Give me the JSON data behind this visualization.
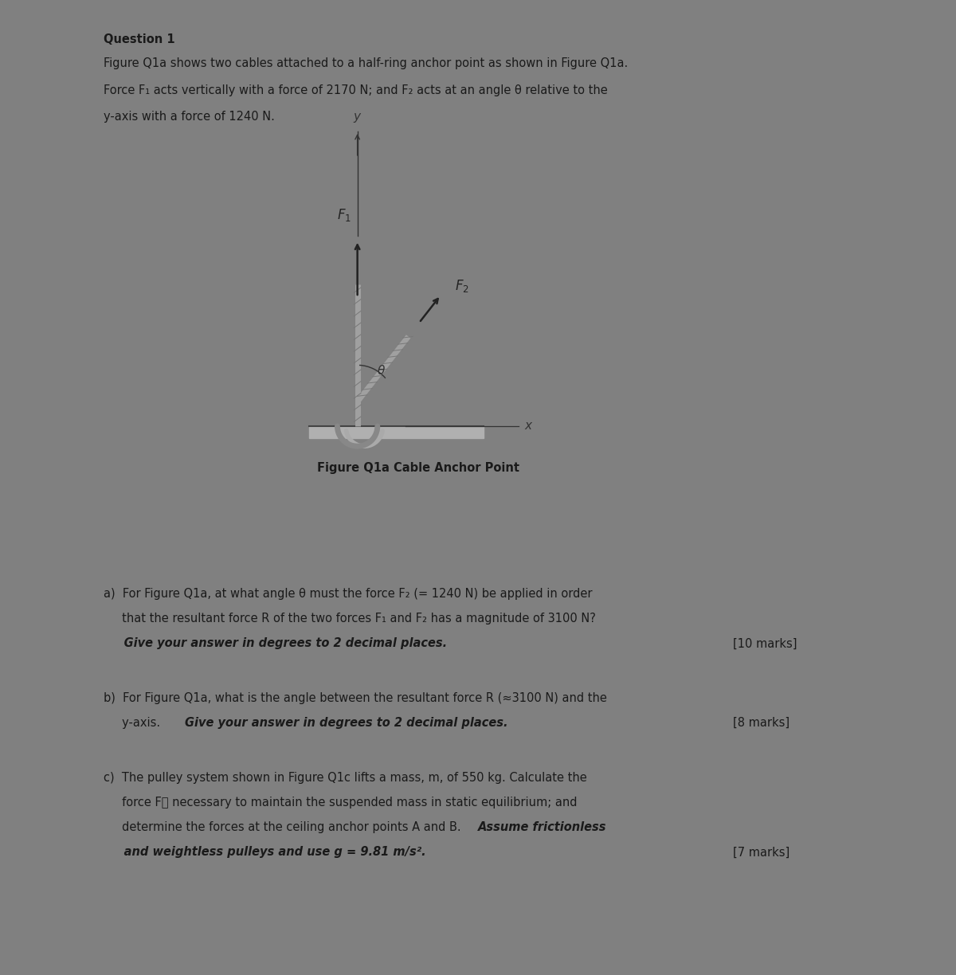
{
  "title": "Question 1",
  "text_color": "#1a1a1a",
  "page_bg": "#808080",
  "white": "#ffffff",
  "intro_line1": "Figure Q1a shows two cables attached to a half-ring anchor point as shown in Figure Q1a.",
  "intro_line2": "Force F₁ acts vertically with a force of 2170 N; and F₂ acts at an angle θ relative to the",
  "intro_line3": "y-axis with a force of 1240 N.",
  "fig_caption": "Figure Q1a Cable Anchor Point",
  "a_line1": "a)  For Figure Q1a, at what angle θ must the force F₂ (= 1240 N) be applied in order",
  "a_line2": "     that the resultant force R of the two forces F₁ and F₂ has a magnitude of 3100 N?",
  "a_bold": "     Give your answer in degrees to 2 decimal places.",
  "a_marks": "[10 marks]",
  "b_line1": "b)  For Figure Q1a, what is the angle between the resultant force R (≈3100 N) and the",
  "b_line2_normal": "     y-axis. ",
  "b_line2_bold": "Give your answer in degrees to 2 decimal places.",
  "b_marks": "[8 marks]",
  "c_line1": "c)  The pulley system shown in Figure Q1c lifts a mass, m, of 550 kg. Calculate the",
  "c_line2": "     force F⨺ necessary to maintain the suspended mass in static equilibrium; and",
  "c_line3_normal": "     determine the forces at the ceiling anchor points A and B. ",
  "c_line3_bold": "Assume frictionless",
  "c_line4_bold": "     and weightless pulleys and use g = 9.81 m/s².",
  "c_marks": "[7 marks]"
}
